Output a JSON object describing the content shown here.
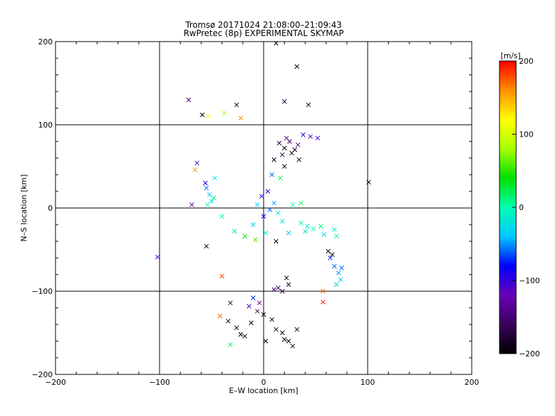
{
  "chart_data": {
    "type": "scatter",
    "title": "Tromsø 20171024 21:08:00–21:09:43",
    "subtitle": "RwPretec (8p) EXPERIMENTAL SKYMAP",
    "xlabel": "E–W location [km]",
    "ylabel": "N–S location [km]",
    "xlim": [
      -200,
      200
    ],
    "ylim": [
      -200,
      200
    ],
    "x_ticks": [
      -200,
      -100,
      0,
      100,
      200
    ],
    "y_ticks": [
      -200,
      -100,
      0,
      100,
      200
    ],
    "x_tick_labels": [
      "−200",
      "−100",
      "0",
      "100",
      "200"
    ],
    "y_tick_labels": [
      "−200",
      "−100",
      "0",
      "100",
      "200"
    ],
    "grid": true,
    "markers": [
      "cross",
      "dot"
    ],
    "colorbar": {
      "label": "[m/s]",
      "range": [
        -200,
        200
      ],
      "ticks": [
        200,
        100,
        0,
        -100,
        -200
      ],
      "tick_labels": [
        "200",
        "100",
        "0",
        "−100",
        "−200"
      ],
      "colors": [
        "#000000",
        "#3a005a",
        "#6a00b8",
        "#0000ff",
        "#00c8ff",
        "#00ffb0",
        "#00e000",
        "#a8ff00",
        "#ffff00",
        "#ff9000",
        "#ff0000"
      ]
    },
    "points": [
      {
        "x": -59,
        "y": 112,
        "v": -200,
        "m": "x"
      },
      {
        "x": -53,
        "y": 110,
        "v": 120,
        "m": "x"
      },
      {
        "x": -38,
        "y": 114,
        "v": 80,
        "m": "x"
      },
      {
        "x": -26,
        "y": 124,
        "v": -200,
        "m": "x"
      },
      {
        "x": -22,
        "y": 108,
        "v": 160,
        "m": "x"
      },
      {
        "x": -72,
        "y": 130,
        "v": -150,
        "m": "x"
      },
      {
        "x": 32,
        "y": 170,
        "v": -200,
        "m": "x"
      },
      {
        "x": 12,
        "y": 198,
        "v": -200,
        "m": "x"
      },
      {
        "x": 43,
        "y": 124,
        "v": -200,
        "m": "x"
      },
      {
        "x": 20,
        "y": 128,
        "v": -170,
        "m": "x"
      },
      {
        "x": 15,
        "y": 78,
        "v": -180,
        "m": "x"
      },
      {
        "x": 20,
        "y": 72,
        "v": -200,
        "m": "x"
      },
      {
        "x": 25,
        "y": 80,
        "v": -160,
        "m": "x"
      },
      {
        "x": 30,
        "y": 70,
        "v": -190,
        "m": "x"
      },
      {
        "x": 18,
        "y": 64,
        "v": -170,
        "m": "x"
      },
      {
        "x": 27,
        "y": 66,
        "v": -200,
        "m": "x"
      },
      {
        "x": 33,
        "y": 76,
        "v": -150,
        "m": "x"
      },
      {
        "x": 22,
        "y": 84,
        "v": -140,
        "m": "x"
      },
      {
        "x": 45,
        "y": 86,
        "v": -110,
        "m": "x"
      },
      {
        "x": 52,
        "y": 84,
        "v": -100,
        "m": "x"
      },
      {
        "x": 38,
        "y": 88,
        "v": -90,
        "m": "x"
      },
      {
        "x": 10,
        "y": 58,
        "v": -200,
        "m": "x"
      },
      {
        "x": 34,
        "y": 58,
        "v": -180,
        "m": "x"
      },
      {
        "x": -66,
        "y": 46,
        "v": 160,
        "m": "x"
      },
      {
        "x": -64,
        "y": 54,
        "v": -100,
        "m": "x"
      },
      {
        "x": -55,
        "y": 24,
        "v": -60,
        "m": "x"
      },
      {
        "x": -52,
        "y": 16,
        "v": -40,
        "m": "x"
      },
      {
        "x": -50,
        "y": 8,
        "v": -20,
        "m": "x"
      },
      {
        "x": -54,
        "y": 4,
        "v": 0,
        "m": "x"
      },
      {
        "x": -48,
        "y": 12,
        "v": 10,
        "m": "x"
      },
      {
        "x": -56,
        "y": 30,
        "v": -80,
        "m": "x"
      },
      {
        "x": -69,
        "y": 4,
        "v": -130,
        "m": "x"
      },
      {
        "x": -47,
        "y": 36,
        "v": -20,
        "m": "x"
      },
      {
        "x": 101,
        "y": 31,
        "v": -200,
        "m": "x"
      },
      {
        "x": 36,
        "y": -18,
        "v": 0,
        "m": "x"
      },
      {
        "x": 42,
        "y": -22,
        "v": -10,
        "m": "x"
      },
      {
        "x": 48,
        "y": -25,
        "v": 0,
        "m": "x"
      },
      {
        "x": 40,
        "y": -28,
        "v": -20,
        "m": "x"
      },
      {
        "x": 55,
        "y": -22,
        "v": 10,
        "m": "x"
      },
      {
        "x": 58,
        "y": -32,
        "v": -30,
        "m": "x"
      },
      {
        "x": 68,
        "y": -26,
        "v": -20,
        "m": "x"
      },
      {
        "x": 70,
        "y": -34,
        "v": -10,
        "m": "x"
      },
      {
        "x": 62,
        "y": -52,
        "v": -200,
        "m": "x"
      },
      {
        "x": 66,
        "y": -56,
        "v": -200,
        "m": "x"
      },
      {
        "x": 68,
        "y": -70,
        "v": -60,
        "m": "x"
      },
      {
        "x": 72,
        "y": -78,
        "v": -50,
        "m": "x"
      },
      {
        "x": 74,
        "y": -86,
        "v": -40,
        "m": "x"
      },
      {
        "x": 64,
        "y": -60,
        "v": -70,
        "m": "x"
      },
      {
        "x": 75,
        "y": -72,
        "v": -60,
        "m": "x"
      },
      {
        "x": 70,
        "y": -92,
        "v": -30,
        "m": "x"
      },
      {
        "x": 57,
        "y": -100,
        "v": 170,
        "m": "x"
      },
      {
        "x": 57,
        "y": -113,
        "v": 190,
        "m": "x"
      },
      {
        "x": -102,
        "y": -59,
        "v": -110,
        "m": "x"
      },
      {
        "x": -55,
        "y": -46,
        "v": -200,
        "m": "x"
      },
      {
        "x": -40,
        "y": -82,
        "v": 180,
        "m": "x"
      },
      {
        "x": -42,
        "y": -130,
        "v": 170,
        "m": "x"
      },
      {
        "x": -32,
        "y": -164,
        "v": 20,
        "m": "x"
      },
      {
        "x": -26,
        "y": -144,
        "v": -200,
        "m": "x"
      },
      {
        "x": -34,
        "y": -136,
        "v": -190,
        "m": "x"
      },
      {
        "x": -32,
        "y": -114,
        "v": -180,
        "m": "x"
      },
      {
        "x": -18,
        "y": -154,
        "v": -200,
        "m": "x"
      },
      {
        "x": -12,
        "y": -138,
        "v": -200,
        "m": "x"
      },
      {
        "x": -6,
        "y": -124,
        "v": -160,
        "m": "x"
      },
      {
        "x": -14,
        "y": -118,
        "v": -110,
        "m": "x"
      },
      {
        "x": -4,
        "y": -114,
        "v": -130,
        "m": "x"
      },
      {
        "x": -10,
        "y": -108,
        "v": -70,
        "m": "x"
      },
      {
        "x": 0,
        "y": -128,
        "v": -200,
        "m": "x"
      },
      {
        "x": 8,
        "y": -134,
        "v": -200,
        "m": "x"
      },
      {
        "x": 14,
        "y": -96,
        "v": -170,
        "m": "x"
      },
      {
        "x": 18,
        "y": -100,
        "v": -160,
        "m": "x"
      },
      {
        "x": 10,
        "y": -98,
        "v": -150,
        "m": "x"
      },
      {
        "x": 22,
        "y": -84,
        "v": -200,
        "m": "x"
      },
      {
        "x": 24,
        "y": -92,
        "v": -180,
        "m": "x"
      },
      {
        "x": 18,
        "y": -150,
        "v": -200,
        "m": "x"
      },
      {
        "x": 24,
        "y": -160,
        "v": -200,
        "m": "x"
      },
      {
        "x": 28,
        "y": -166,
        "v": -200,
        "m": "x"
      },
      {
        "x": 32,
        "y": -146,
        "v": -200,
        "m": "x"
      },
      {
        "x": 20,
        "y": -158,
        "v": -200,
        "m": "x"
      },
      {
        "x": 12,
        "y": -146,
        "v": -200,
        "m": "x"
      },
      {
        "x": 2,
        "y": -160,
        "v": -200,
        "m": "x"
      },
      {
        "x": -22,
        "y": -152,
        "v": -200,
        "m": "x"
      },
      {
        "x": 0,
        "y": -10,
        "v": -80,
        "m": "x"
      },
      {
        "x": 6,
        "y": -2,
        "v": -60,
        "m": "x"
      },
      {
        "x": -6,
        "y": 4,
        "v": -40,
        "m": "x"
      },
      {
        "x": 10,
        "y": 6,
        "v": -50,
        "m": "x"
      },
      {
        "x": -2,
        "y": 14,
        "v": -100,
        "m": "x"
      },
      {
        "x": 4,
        "y": 20,
        "v": -90,
        "m": "x"
      },
      {
        "x": 14,
        "y": -6,
        "v": -20,
        "m": "x"
      },
      {
        "x": 18,
        "y": -16,
        "v": -30,
        "m": "x"
      },
      {
        "x": 28,
        "y": 4,
        "v": 0,
        "m": "x"
      },
      {
        "x": 36,
        "y": 6,
        "v": 20,
        "m": "x"
      },
      {
        "x": -10,
        "y": -20,
        "v": -30,
        "m": "x"
      },
      {
        "x": -18,
        "y": -34,
        "v": 40,
        "m": "x"
      },
      {
        "x": -8,
        "y": -38,
        "v": 60,
        "m": "x"
      },
      {
        "x": 2,
        "y": -30,
        "v": -10,
        "m": "x"
      },
      {
        "x": 12,
        "y": -40,
        "v": -200,
        "m": "x"
      },
      {
        "x": 24,
        "y": -30,
        "v": -40,
        "m": "x"
      },
      {
        "x": -28,
        "y": -28,
        "v": 10,
        "m": "x"
      },
      {
        "x": -40,
        "y": -10,
        "v": 0,
        "m": "x"
      },
      {
        "x": 16,
        "y": 36,
        "v": 20,
        "m": "x"
      },
      {
        "x": 20,
        "y": 50,
        "v": -180,
        "m": "x"
      },
      {
        "x": 8,
        "y": 40,
        "v": -60,
        "m": "x"
      }
    ]
  }
}
